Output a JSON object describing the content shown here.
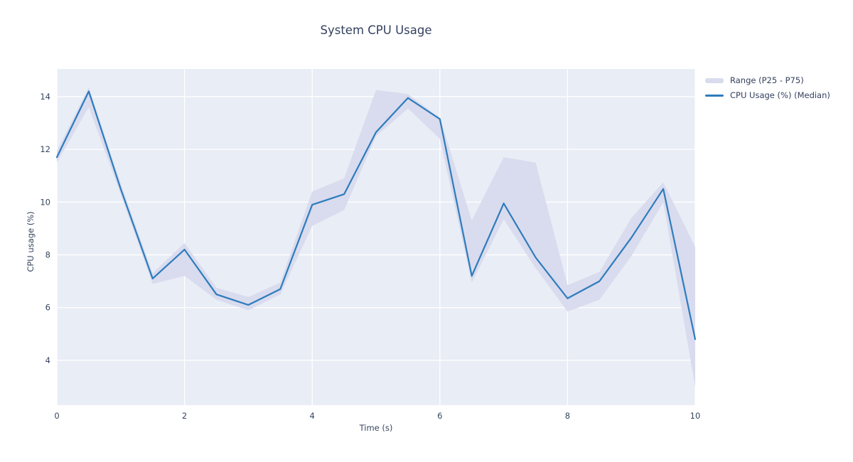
{
  "figure_title": "System CPU Usage",
  "chart_data": {
    "type": "line",
    "title": "System CPU Usage",
    "xlabel": "Time (s)",
    "ylabel": "CPU usage (%)",
    "x": [
      0,
      0.5,
      1,
      1.5,
      2,
      2.5,
      3,
      3.5,
      4,
      4.5,
      5,
      5.5,
      6,
      6.5,
      7,
      7.5,
      8,
      8.5,
      9,
      9.5,
      10
    ],
    "series": [
      {
        "name": "Range (P25 - P75)",
        "type": "band",
        "color": "#d9dbee",
        "upper": [
          11.95,
          14.35,
          10.7,
          7.3,
          8.45,
          6.75,
          6.4,
          6.95,
          10.4,
          10.9,
          14.25,
          14.1,
          13.2,
          9.3,
          11.7,
          11.5,
          6.85,
          7.35,
          9.4,
          10.75,
          8.3
        ],
        "lower": [
          11.5,
          13.6,
          10.3,
          6.9,
          7.2,
          6.3,
          5.9,
          6.5,
          9.1,
          9.7,
          12.5,
          13.55,
          12.4,
          6.95,
          9.35,
          7.5,
          5.85,
          6.3,
          7.95,
          10.0,
          3.0
        ]
      },
      {
        "name": "CPU Usage (%) (Median)",
        "type": "line",
        "color": "#2d7cbd",
        "values": [
          11.7,
          14.2,
          10.5,
          7.1,
          8.2,
          6.5,
          6.1,
          6.7,
          9.9,
          10.3,
          12.65,
          13.95,
          13.15,
          7.2,
          9.95,
          7.9,
          6.35,
          7.0,
          8.65,
          10.5,
          4.8
        ]
      }
    ],
    "xticks": [
      0,
      2,
      4,
      6,
      8,
      10
    ],
    "yticks": [
      4,
      6,
      8,
      10,
      12,
      14
    ],
    "xlim": [
      0,
      10
    ],
    "ylim": [
      2.3,
      15.05
    ],
    "grid": true,
    "plot_bg": "#e9edf5",
    "grid_color": "#ffffff",
    "legend_position": "top-right-outside"
  }
}
